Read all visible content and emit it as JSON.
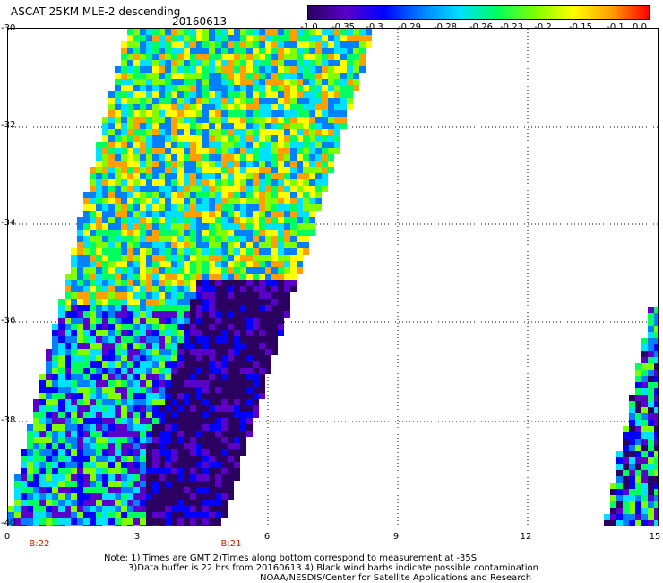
{
  "header": {
    "title": "ASCAT 25KM MLE-2 descending",
    "date": "20160613"
  },
  "colorbar": {
    "labels": [
      "-1.0",
      "-0.35",
      "-0.3",
      "-0.29",
      "-0.28",
      "-0.26",
      "-0.23",
      "-0.2",
      "-0.15",
      "-0.1",
      "0.0"
    ],
    "colors": [
      "#2a0060",
      "#5a00c8",
      "#0000ff",
      "#0080ff",
      "#00e0ff",
      "#00ff60",
      "#80ff00",
      "#ffff00",
      "#ffa000",
      "#ff0000"
    ]
  },
  "axes": {
    "y_ticks": [
      "-30",
      "-32",
      "-34",
      "-36",
      "-38",
      "-40"
    ],
    "x_ticks": [
      "0",
      "3",
      "6",
      "9",
      "12",
      "15"
    ],
    "time_labels": [
      "B:22",
      "B:21"
    ]
  },
  "footer": {
    "note_line1": "Note: 1) Times are GMT 2)Times along bottom correspond to measurement at -35S",
    "note_line2": "3)Data buffer is 22 hrs from 20160613 4) Black wind barbs indicate possible contamination",
    "credit": "NOAA/NESDIS/Center for Satellite Applications and Research"
  }
}
